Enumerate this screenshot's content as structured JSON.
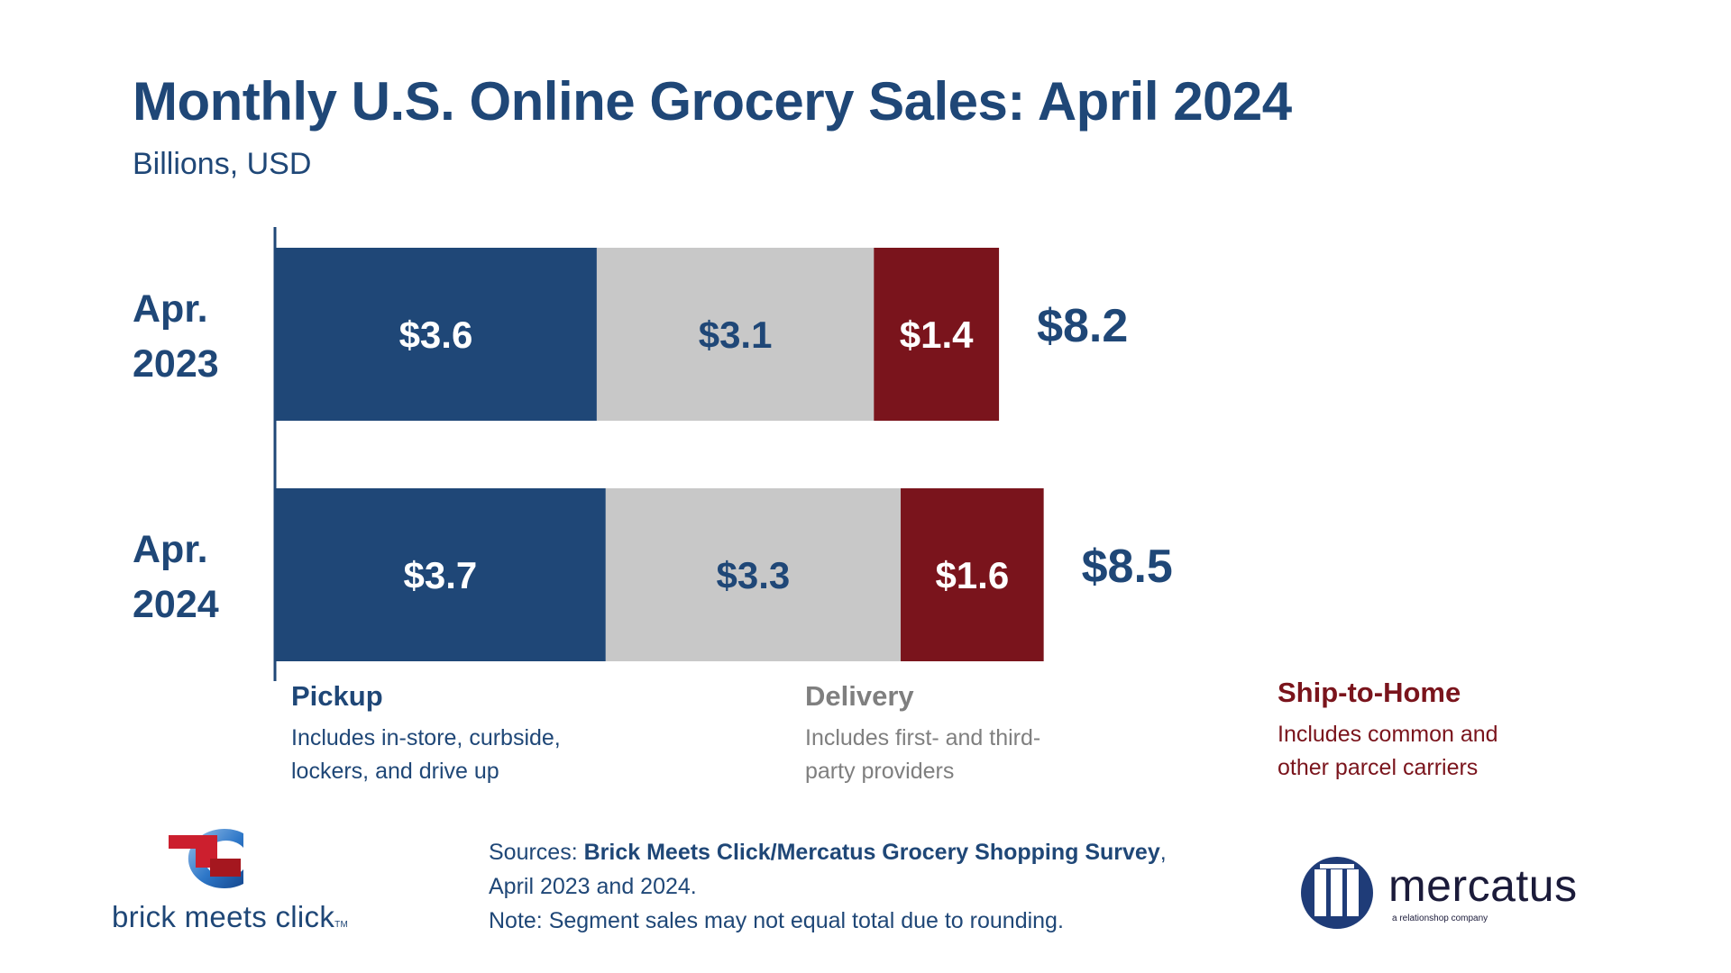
{
  "chart_data": {
    "type": "bar",
    "orientation": "horizontal",
    "stacked": true,
    "title": "Monthly U.S. Online Grocery Sales: April 2024",
    "subtitle": "Billions, USD",
    "categories": [
      [
        "Apr.",
        "2023"
      ],
      [
        "Apr.",
        "2024"
      ]
    ],
    "series": [
      {
        "name": "Pickup",
        "values": [
          3.6,
          3.7
        ],
        "labels": [
          "$3.6",
          "$3.7"
        ],
        "color": "#1f4777",
        "label_color": "#ffffff"
      },
      {
        "name": "Delivery",
        "values": [
          3.1,
          3.3
        ],
        "labels": [
          "$3.1",
          "$3.3"
        ],
        "color": "#c8c8c8",
        "label_color": "#1f4777"
      },
      {
        "name": "Ship-to-Home",
        "values": [
          1.4,
          1.6
        ],
        "labels": [
          "$1.4",
          "$1.6"
        ],
        "color": "#7a141c",
        "label_color": "#ffffff"
      }
    ],
    "totals": [
      "$8.2",
      "$8.5"
    ],
    "total_values": [
      8.2,
      8.5
    ],
    "xlim": [
      0,
      11.7
    ],
    "grid": false,
    "legend": {
      "placement": "bottom",
      "items": [
        {
          "name": "Pickup",
          "description_lines": [
            "Includes in-store, curbside,",
            "lockers, and drive up"
          ]
        },
        {
          "name": "Delivery",
          "description_lines": [
            "Includes first- and third-",
            "party providers"
          ]
        },
        {
          "name": "Ship-to-Home",
          "description_lines": [
            "Includes common and",
            "other parcel carriers"
          ]
        }
      ]
    }
  },
  "sources": {
    "prefix": "Sources: ",
    "survey_name": "Brick Meets Click/Mercatus Grocery Shopping Survey",
    "suffix": ",",
    "line2": "April 2023 and 2024.",
    "note": "Note: Segment sales may not equal total due to rounding."
  },
  "logos": {
    "brick_meets_click": {
      "wordmark": "brick meets click",
      "trademark": "TM",
      "icon": "bmc-logo-icon",
      "colors": [
        "#cc1f2e",
        "#2e77c8"
      ]
    },
    "mercatus": {
      "wordmark": "mercatus",
      "tagline": "a relationshop company",
      "icon": "mercatus-logo-icon",
      "color": "#1f3c78"
    }
  }
}
